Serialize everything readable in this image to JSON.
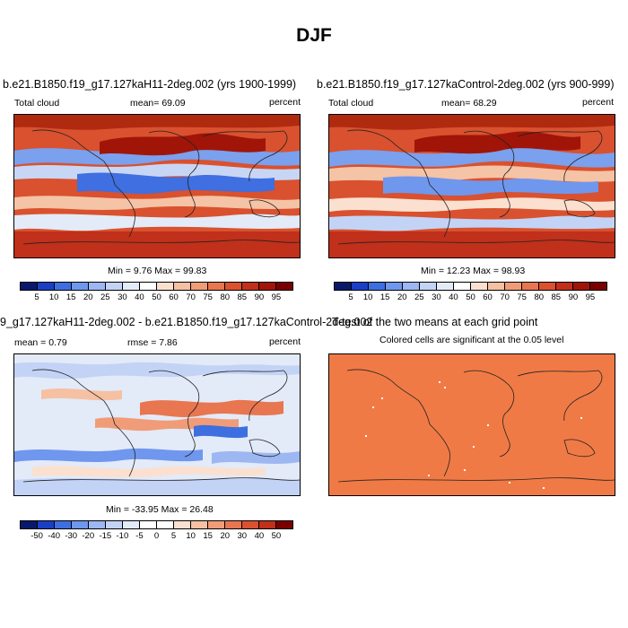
{
  "main_title": "DJF",
  "panels": [
    {
      "title": "b.e21.B1850.f19_g17.127kaH11-2deg.002 (yrs 1900-1999)",
      "left": "Total cloud",
      "center": "mean=  69.09",
      "right": "percent",
      "minmax": "Min =  9.76 Max =  99.83"
    },
    {
      "title": "b.e21.B1850.f19_g17.127kaControl-2deg.002 (yrs 900-999)",
      "left": "Total cloud",
      "center": "mean=  68.29",
      "right": "percent",
      "minmax": "Min = 12.23 Max =  98.93"
    },
    {
      "title": "9_g17.127kaH11-2deg.002 - b.e21.B1850.f19_g17.127kaControl-2deg.002",
      "left": "mean =   0.79",
      "center": "rmse =   7.86",
      "right": "percent",
      "minmax": "Min = -33.95 Max =  26.48"
    },
    {
      "title": "T-test of the two means at each grid point",
      "subtitle": "Colored cells are significant at the 0.05 level"
    }
  ],
  "colorbar_abs": {
    "labels": [
      "5",
      "10",
      "15",
      "20",
      "25",
      "30",
      "40",
      "50",
      "60",
      "70",
      "75",
      "80",
      "85",
      "90",
      "95"
    ],
    "colors": [
      "#08196b",
      "#1a3fc4",
      "#3d6fe0",
      "#6f97ee",
      "#9cb7f2",
      "#c3d3f6",
      "#e3eaf8",
      "#ffffff",
      "#fbe0d0",
      "#f6c0a3",
      "#f19c78",
      "#e87650",
      "#db5230",
      "#c0301a",
      "#a01508",
      "#7a0000"
    ]
  },
  "colorbar_diff": {
    "labels": [
      "-50",
      "-40",
      "-30",
      "-20",
      "-15",
      "-10",
      "-5",
      "0",
      "5",
      "10",
      "15",
      "20",
      "30",
      "40",
      "50"
    ],
    "colors": [
      "#08196b",
      "#1a3fc4",
      "#3d6fe0",
      "#6f97ee",
      "#9cb7f2",
      "#c3d3f6",
      "#e3eaf8",
      "#ffffff",
      "#ffffff",
      "#fbe0d0",
      "#f6c0a3",
      "#f19c78",
      "#e87650",
      "#db5230",
      "#c0301a",
      "#7a0000"
    ]
  },
  "ttest_color": "#f07a45"
}
